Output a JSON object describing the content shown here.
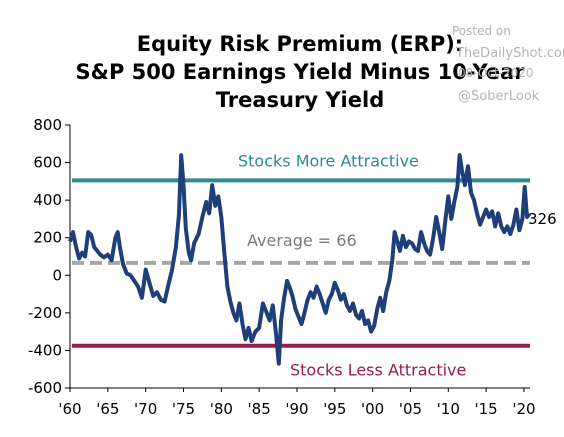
{
  "chart_data": {
    "type": "line",
    "title_lines": [
      "Equity Risk Premium (ERP):",
      "S&P 500 Earnings Yield Minus 10-Year",
      "Treasury Yield"
    ],
    "watermark": {
      "line1": "Posted on",
      "line2": "TheDailyShot.com",
      "line3": "08-Oct-2020",
      "handle": "@SoberLook"
    },
    "xlabel": "",
    "ylabel": "",
    "xlim": [
      1960,
      2020.8
    ],
    "ylim": [
      -600,
      800
    ],
    "y_ticks": [
      "800",
      "600",
      "400",
      "200",
      "0",
      "-200",
      "-400",
      "-600"
    ],
    "x_ticks": [
      "'60",
      "'65",
      "'70",
      "'75",
      "'80",
      "'85",
      "'90",
      "'95",
      "'00",
      "'05",
      "'10",
      "'15",
      "'20"
    ],
    "reference_lines": [
      {
        "label": "Stocks More Attractive",
        "value": 505,
        "color": "#2e8a8f",
        "style": "solid"
      },
      {
        "label": "Average = 66",
        "value": 66,
        "color": "#a6a6a6",
        "style": "dashed"
      },
      {
        "label": "Stocks Less Attractive",
        "value": -375,
        "color": "#9a1b52",
        "style": "solid"
      }
    ],
    "end_label": "326",
    "series": [
      {
        "color": "#1f3f7a",
        "points": [
          [
            1960.0,
            180
          ],
          [
            1960.4,
            230
          ],
          [
            1960.8,
            150
          ],
          [
            1961.2,
            90
          ],
          [
            1961.6,
            120
          ],
          [
            1962.0,
            100
          ],
          [
            1962.4,
            230
          ],
          [
            1962.8,
            215
          ],
          [
            1963.2,
            150
          ],
          [
            1963.6,
            130
          ],
          [
            1964.0,
            110
          ],
          [
            1964.5,
            95
          ],
          [
            1965.0,
            110
          ],
          [
            1965.5,
            80
          ],
          [
            1966.0,
            200
          ],
          [
            1966.3,
            230
          ],
          [
            1966.6,
            150
          ],
          [
            1967.0,
            60
          ],
          [
            1967.5,
            10
          ],
          [
            1968.0,
            0
          ],
          [
            1968.5,
            -30
          ],
          [
            1969.0,
            -60
          ],
          [
            1969.5,
            -120
          ],
          [
            1970.0,
            30
          ],
          [
            1970.5,
            -40
          ],
          [
            1971.0,
            -110
          ],
          [
            1971.5,
            -90
          ],
          [
            1972.0,
            -130
          ],
          [
            1972.5,
            -140
          ],
          [
            1973.0,
            -50
          ],
          [
            1973.5,
            30
          ],
          [
            1974.0,
            150
          ],
          [
            1974.4,
            320
          ],
          [
            1974.7,
            640
          ],
          [
            1975.0,
            480
          ],
          [
            1975.3,
            250
          ],
          [
            1975.7,
            120
          ],
          [
            1976.0,
            80
          ],
          [
            1976.4,
            170
          ],
          [
            1977.0,
            220
          ],
          [
            1977.5,
            310
          ],
          [
            1978.0,
            390
          ],
          [
            1978.4,
            330
          ],
          [
            1978.8,
            480
          ],
          [
            1979.2,
            370
          ],
          [
            1979.6,
            420
          ],
          [
            1980.0,
            310
          ],
          [
            1980.4,
            120
          ],
          [
            1980.8,
            -60
          ],
          [
            1981.2,
            -140
          ],
          [
            1981.6,
            -200
          ],
          [
            1982.0,
            -240
          ],
          [
            1982.4,
            -150
          ],
          [
            1982.8,
            -260
          ],
          [
            1983.2,
            -340
          ],
          [
            1983.6,
            -280
          ],
          [
            1984.0,
            -350
          ],
          [
            1984.5,
            -300
          ],
          [
            1985.0,
            -280
          ],
          [
            1985.5,
            -150
          ],
          [
            1986.0,
            -200
          ],
          [
            1986.4,
            -240
          ],
          [
            1986.8,
            -160
          ],
          [
            1987.2,
            -300
          ],
          [
            1987.6,
            -470
          ],
          [
            1987.9,
            -240
          ],
          [
            1988.3,
            -120
          ],
          [
            1988.7,
            -30
          ],
          [
            1989.0,
            -60
          ],
          [
            1989.4,
            -110
          ],
          [
            1989.8,
            -180
          ],
          [
            1990.2,
            -220
          ],
          [
            1990.6,
            -260
          ],
          [
            1991.0,
            -200
          ],
          [
            1991.4,
            -130
          ],
          [
            1991.8,
            -90
          ],
          [
            1992.2,
            -120
          ],
          [
            1992.6,
            -60
          ],
          [
            1993.0,
            -100
          ],
          [
            1993.4,
            -150
          ],
          [
            1993.8,
            -200
          ],
          [
            1994.2,
            -130
          ],
          [
            1994.6,
            -100
          ],
          [
            1995.0,
            -40
          ],
          [
            1995.4,
            -80
          ],
          [
            1995.8,
            -130
          ],
          [
            1996.2,
            -100
          ],
          [
            1996.6,
            -160
          ],
          [
            1997.0,
            -190
          ],
          [
            1997.4,
            -150
          ],
          [
            1997.8,
            -210
          ],
          [
            1998.2,
            -230
          ],
          [
            1998.6,
            -190
          ],
          [
            1999.0,
            -260
          ],
          [
            1999.4,
            -240
          ],
          [
            1999.8,
            -300
          ],
          [
            2000.2,
            -270
          ],
          [
            2000.6,
            -180
          ],
          [
            2001.0,
            -120
          ],
          [
            2001.4,
            -190
          ],
          [
            2001.8,
            -90
          ],
          [
            2002.2,
            -30
          ],
          [
            2002.6,
            80
          ],
          [
            2002.9,
            230
          ],
          [
            2003.2,
            190
          ],
          [
            2003.6,
            130
          ],
          [
            2004.0,
            210
          ],
          [
            2004.4,
            150
          ],
          [
            2004.8,
            180
          ],
          [
            2005.2,
            170
          ],
          [
            2005.6,
            140
          ],
          [
            2006.0,
            130
          ],
          [
            2006.4,
            230
          ],
          [
            2006.8,
            170
          ],
          [
            2007.2,
            130
          ],
          [
            2007.6,
            110
          ],
          [
            2008.0,
            200
          ],
          [
            2008.4,
            310
          ],
          [
            2008.8,
            230
          ],
          [
            2009.2,
            140
          ],
          [
            2009.6,
            290
          ],
          [
            2010.0,
            420
          ],
          [
            2010.4,
            300
          ],
          [
            2010.8,
            390
          ],
          [
            2011.2,
            470
          ],
          [
            2011.5,
            640
          ],
          [
            2011.8,
            560
          ],
          [
            2012.2,
            480
          ],
          [
            2012.6,
            580
          ],
          [
            2013.0,
            440
          ],
          [
            2013.4,
            400
          ],
          [
            2013.8,
            330
          ],
          [
            2014.2,
            270
          ],
          [
            2014.6,
            310
          ],
          [
            2015.0,
            350
          ],
          [
            2015.4,
            310
          ],
          [
            2015.8,
            340
          ],
          [
            2016.2,
            260
          ],
          [
            2016.6,
            330
          ],
          [
            2017.0,
            260
          ],
          [
            2017.4,
            230
          ],
          [
            2017.8,
            260
          ],
          [
            2018.2,
            220
          ],
          [
            2018.6,
            270
          ],
          [
            2019.0,
            350
          ],
          [
            2019.4,
            240
          ],
          [
            2019.8,
            300
          ],
          [
            2020.1,
            470
          ],
          [
            2020.4,
            310
          ],
          [
            2020.6,
            320
          ],
          [
            2020.75,
            326
          ]
        ]
      }
    ]
  }
}
